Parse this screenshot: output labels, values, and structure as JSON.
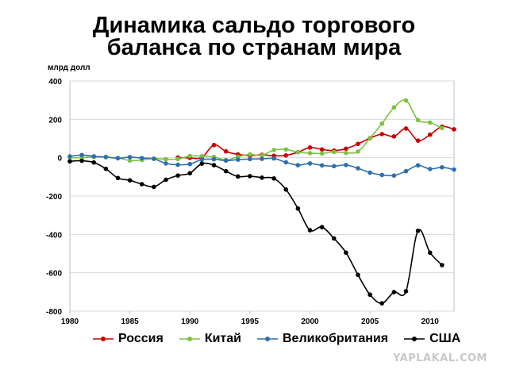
{
  "title": {
    "line1": "Динамика сальдо торгового",
    "line2": "баланса по странам мира"
  },
  "watermark": "YAPLAKAL.COM",
  "chart_data": {
    "type": "line",
    "ylabel": "млрд долл",
    "xlim": [
      1980,
      2012
    ],
    "ylim": [
      -800,
      400
    ],
    "x_ticks": [
      1980,
      1985,
      1990,
      1995,
      2000,
      2005,
      2010
    ],
    "y_ticks": [
      400,
      200,
      0,
      -200,
      -400,
      -600,
      -800
    ],
    "grid": "horizontal",
    "legend_position": "bottom",
    "series": [
      {
        "name": "Россия",
        "color": "#cc0000",
        "x": [
          1989,
          1990,
          1991,
          1992,
          1993,
          1994,
          1995,
          1996,
          1997,
          1998,
          1999,
          2000,
          2001,
          2002,
          2003,
          2004,
          2005,
          2006,
          2007,
          2008,
          2009,
          2010,
          2011,
          2012
        ],
        "values": [
          1,
          -1,
          1,
          66,
          33,
          17,
          11,
          15,
          10,
          12,
          29,
          53,
          43,
          37,
          47,
          72,
          102,
          123,
          111,
          152,
          89,
          120,
          162,
          148
        ]
      },
      {
        "name": "Китай",
        "color": "#7dc142",
        "x": [
          1980,
          1981,
          1982,
          1983,
          1984,
          1985,
          1986,
          1987,
          1988,
          1989,
          1990,
          1991,
          1992,
          1993,
          1994,
          1995,
          1996,
          1997,
          1998,
          1999,
          2000,
          2001,
          2002,
          2003,
          2004,
          2005,
          2006,
          2007,
          2008,
          2009,
          2010,
          2011
        ],
        "values": [
          0,
          0,
          4,
          2,
          -1,
          -15,
          -12,
          -4,
          -8,
          -7,
          9,
          8,
          4,
          -12,
          5,
          17,
          12,
          40,
          43,
          29,
          24,
          22,
          30,
          25,
          32,
          102,
          178,
          262,
          298,
          196,
          183,
          155
        ]
      },
      {
        "name": "Великобритания",
        "color": "#2e6fad",
        "x": [
          1980,
          1981,
          1982,
          1983,
          1984,
          1985,
          1986,
          1987,
          1988,
          1989,
          1990,
          1991,
          1992,
          1993,
          1994,
          1995,
          1996,
          1997,
          1998,
          1999,
          2000,
          2001,
          2002,
          2003,
          2004,
          2005,
          2006,
          2007,
          2008,
          2009,
          2010,
          2011,
          2012
        ],
        "values": [
          7,
          14,
          7,
          4,
          -3,
          3,
          -2,
          -6,
          -30,
          -37,
          -33,
          -10,
          -8,
          -15,
          -10,
          -7,
          -6,
          -4,
          -24,
          -39,
          -30,
          -40,
          -44,
          -38,
          -55,
          -78,
          -90,
          -93,
          -70,
          -40,
          -59,
          -50,
          -62
        ]
      },
      {
        "name": "США",
        "color": "#000000",
        "x": [
          1980,
          1981,
          1982,
          1983,
          1984,
          1985,
          1986,
          1987,
          1988,
          1989,
          1990,
          1991,
          1992,
          1993,
          1994,
          1995,
          1996,
          1997,
          1998,
          1999,
          2000,
          2001,
          2002,
          2003,
          2004,
          2005,
          2006,
          2007,
          2008,
          2009,
          2010,
          2011
        ],
        "values": [
          -19,
          -16,
          -25,
          -58,
          -106,
          -118,
          -138,
          -152,
          -115,
          -93,
          -81,
          -31,
          -39,
          -70,
          -98,
          -96,
          -104,
          -108,
          -166,
          -265,
          -378,
          -362,
          -421,
          -495,
          -611,
          -714,
          -759,
          -701,
          -696,
          -381,
          -495,
          -560
        ]
      }
    ]
  }
}
